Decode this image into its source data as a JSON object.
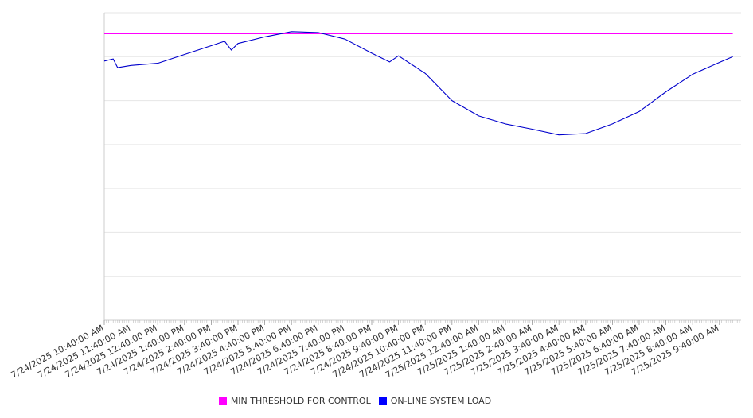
{
  "chart_data": {
    "type": "line",
    "x_tick_labels": [
      "7/24/2025 10:40:00 AM",
      "7/24/2025 11:40:00 AM",
      "7/24/2025 12:40:00 PM",
      "7/24/2025 1:40:00 PM",
      "7/24/2025 2:40:00 PM",
      "7/24/2025 3:40:00 PM",
      "7/24/2025 4:40:00 PM",
      "7/24/2025 5:40:00 PM",
      "7/24/2025 6:40:00 PM",
      "7/24/2025 7:40:00 PM",
      "7/24/2025 8:40:00 PM",
      "7/24/2025 9:40:00 PM",
      "7/24/2025 10:40:00 PM",
      "7/24/2025 11:40:00 PM",
      "7/25/2025 12:40:00 AM",
      "7/25/2025 1:40:00 AM",
      "7/25/2025 2:40:00 AM",
      "7/25/2025 3:40:00 AM",
      "7/25/2025 4:40:00 AM",
      "7/25/2025 5:40:00 AM",
      "7/25/2025 6:40:00 AM",
      "7/25/2025 7:40:00 AM",
      "7/25/2025 8:40:00 AM",
      "7/25/2025 9:40:00 AM"
    ],
    "y_range": [
      0,
      7
    ],
    "y_gridlines": 7,
    "grid": true,
    "legend_position": "bottom",
    "series": [
      {
        "name": "MIN THRESHOLD FOR CONTROL",
        "color": "#ff00ff",
        "x": [
          "7/24/2025 10:40:00 AM",
          "7/25/2025 10:10:00 AM"
        ],
        "y": [
          6.52,
          6.52
        ]
      },
      {
        "name": "ON-LINE SYSTEM LOAD",
        "color": "#0000cc",
        "x": [
          "7/24/2025 10:40:00 AM",
          "7/24/2025 11:00:00 AM",
          "7/24/2025 11:10:00 AM",
          "7/24/2025 11:40:00 AM",
          "7/24/2025 12:40:00 PM",
          "7/24/2025 1:40:00 PM",
          "7/24/2025 2:40:00 PM",
          "7/24/2025 3:10:00 PM",
          "7/24/2025 3:25:00 PM",
          "7/24/2025 3:40:00 PM",
          "7/24/2025 4:40:00 PM",
          "7/24/2025 5:40:00 PM",
          "7/24/2025 6:40:00 PM",
          "7/24/2025 7:40:00 PM",
          "7/24/2025 8:40:00 PM",
          "7/24/2025 9:20:00 PM",
          "7/24/2025 9:40:00 PM",
          "7/24/2025 10:40:00 PM",
          "7/24/2025 11:40:00 PM",
          "7/25/2025 12:40:00 AM",
          "7/25/2025 1:40:00 AM",
          "7/25/2025 2:40:00 AM",
          "7/25/2025 3:40:00 AM",
          "7/25/2025 4:40:00 AM",
          "7/25/2025 5:40:00 AM",
          "7/25/2025 6:40:00 AM",
          "7/25/2025 7:40:00 AM",
          "7/25/2025 8:40:00 AM",
          "7/25/2025 9:40:00 AM",
          "7/25/2025 10:10:00 AM"
        ],
        "y": [
          5.9,
          5.95,
          5.75,
          5.8,
          5.85,
          6.05,
          6.25,
          6.35,
          6.15,
          6.3,
          6.45,
          6.57,
          6.55,
          6.4,
          6.08,
          5.88,
          6.02,
          5.62,
          5.0,
          4.65,
          4.47,
          4.35,
          4.22,
          4.25,
          4.47,
          4.75,
          5.2,
          5.6,
          5.87,
          6.0
        ]
      }
    ]
  }
}
